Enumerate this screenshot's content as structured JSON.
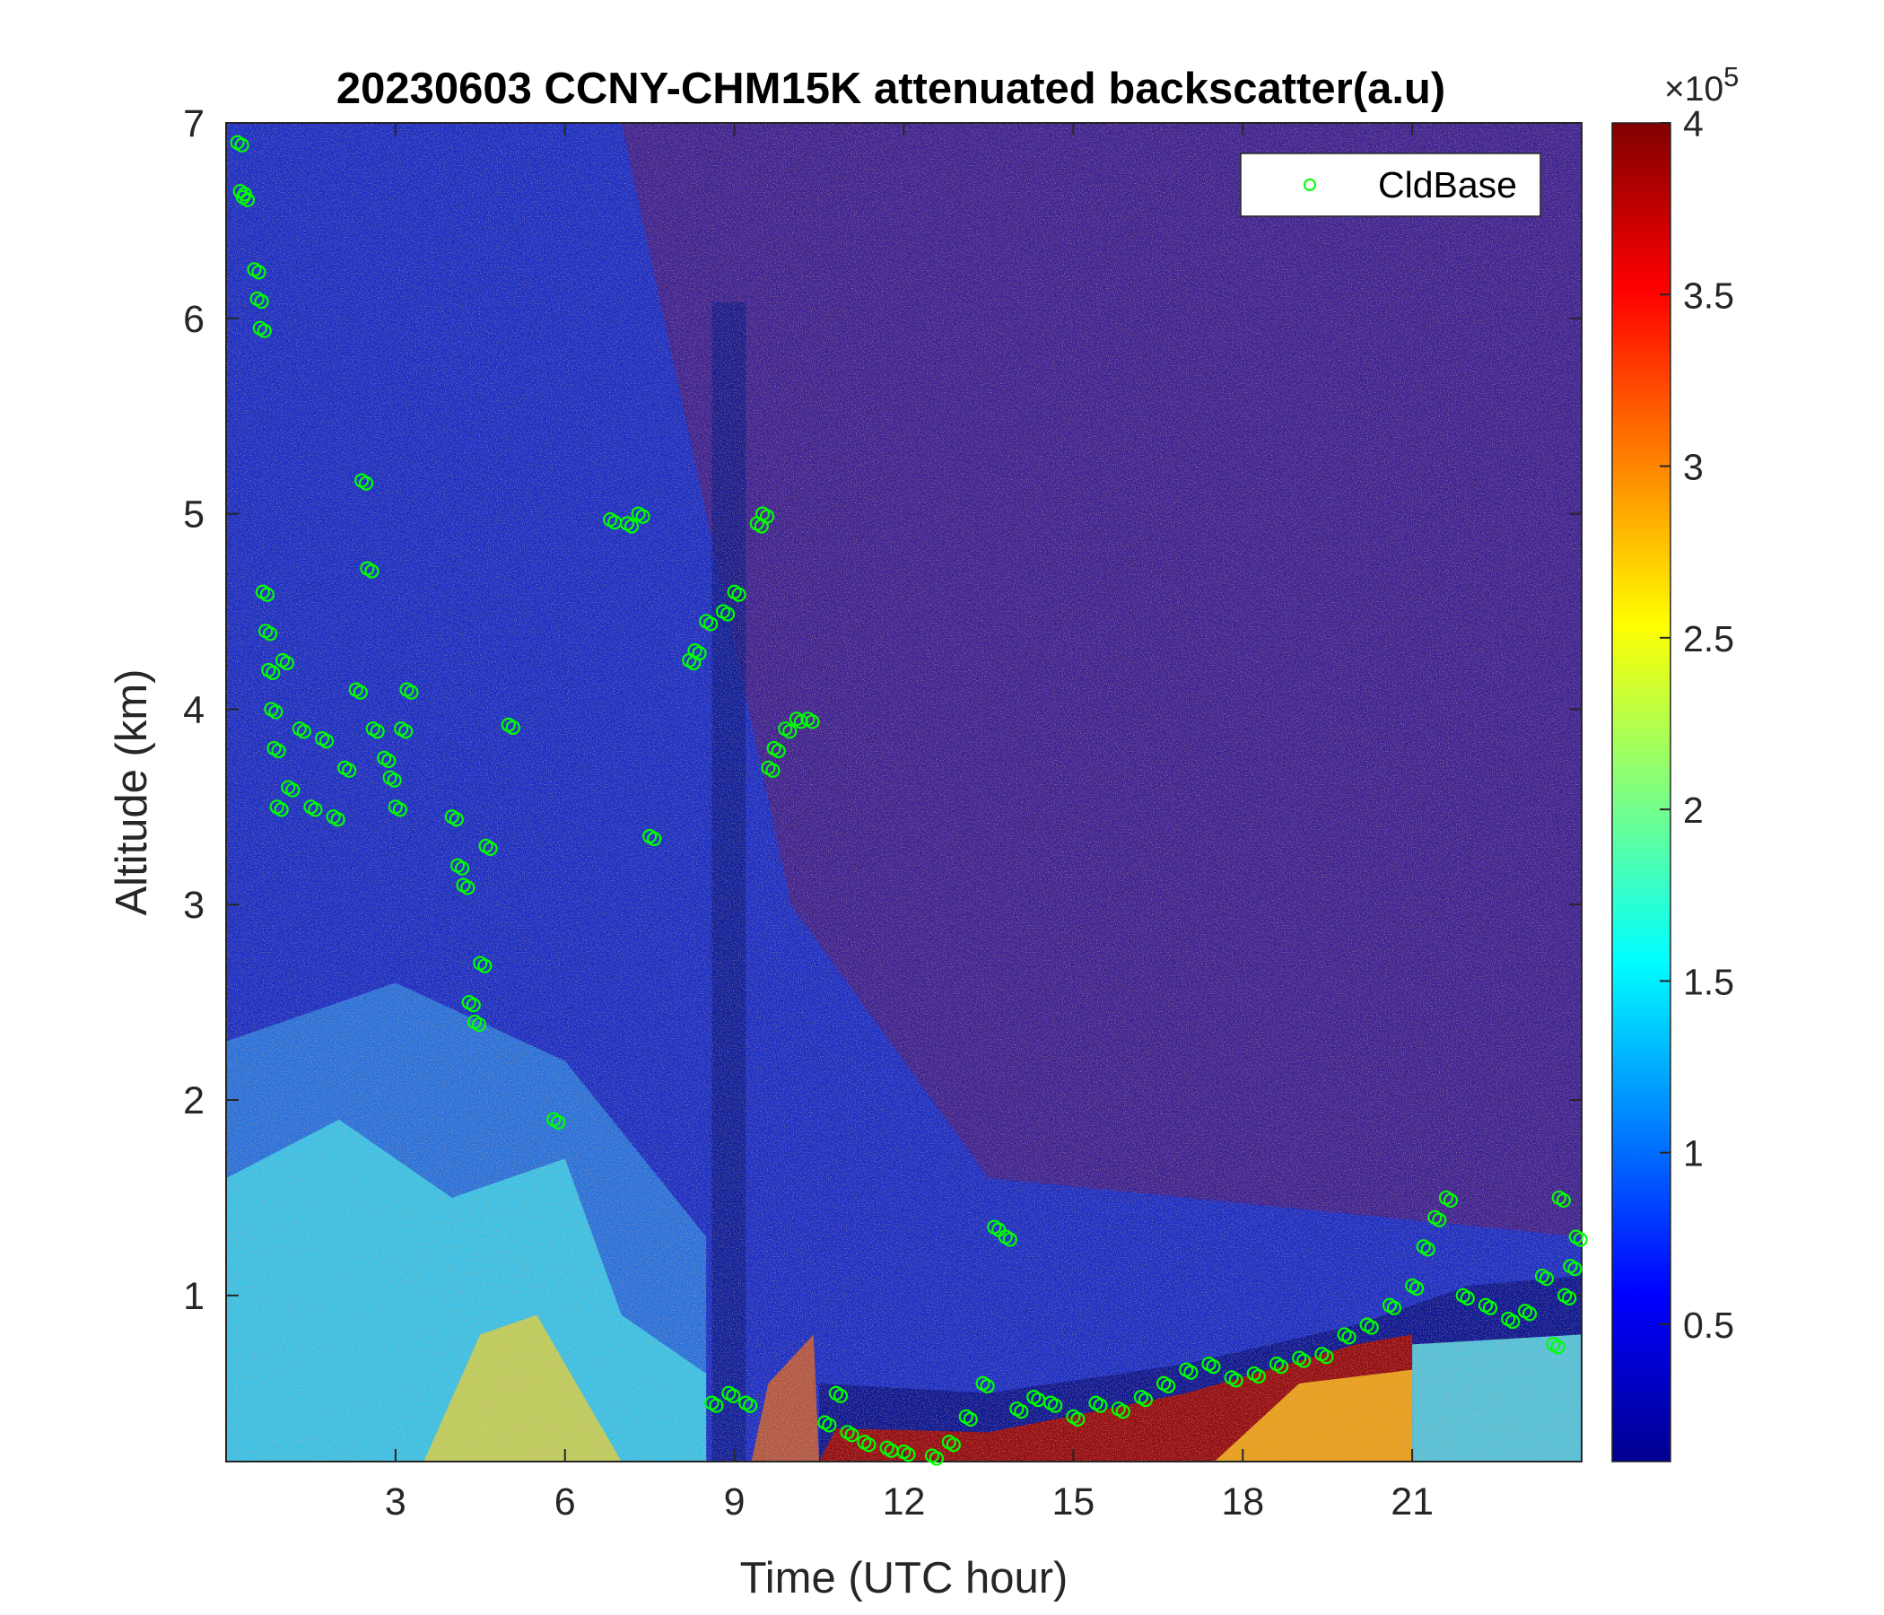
{
  "chart_data": {
    "type": "heatmap",
    "title": "20230603 CCNY-CHM15K attenuated backscatter(a.u)",
    "xlabel": "Time (UTC hour)",
    "ylabel": "Altitude (km)",
    "xlim": [
      0,
      24
    ],
    "ylim": [
      0.15,
      7
    ],
    "xticks": [
      3,
      6,
      9,
      12,
      15,
      18,
      21
    ],
    "xtick_labels": [
      "3",
      "6",
      "9",
      "12",
      "15",
      "18",
      "21"
    ],
    "yticks": [
      1,
      2,
      3,
      4,
      5,
      6,
      7
    ],
    "ytick_labels": [
      "1",
      "2",
      "3",
      "4",
      "5",
      "6",
      "7"
    ],
    "colorbar": {
      "colormap": "jet",
      "range": [
        0.1,
        4
      ],
      "ticks": [
        0.5,
        1,
        1.5,
        2,
        2.5,
        3,
        3.5,
        4
      ],
      "tick_labels": [
        "0.5",
        "1",
        "1.5",
        "2",
        "2.5",
        "3",
        "3.5",
        "4"
      ],
      "exponent_label": "×10",
      "exponent_power": "5"
    },
    "legend": {
      "position": "top-right",
      "entries": [
        "CldBase"
      ],
      "marker_color": "#00ff00"
    },
    "series": [
      {
        "name": "CldBase",
        "marker": "circle",
        "color": "#00ff00",
        "x": [
          0.2,
          0.25,
          0.3,
          0.5,
          0.55,
          0.6,
          0.65,
          0.7,
          0.75,
          0.8,
          0.85,
          0.9,
          1.0,
          1.1,
          1.3,
          1.5,
          1.7,
          1.9,
          2.1,
          2.3,
          2.4,
          2.5,
          2.6,
          2.8,
          2.9,
          3.0,
          3.1,
          3.2,
          4.0,
          4.1,
          4.2,
          4.3,
          4.4,
          4.5,
          4.6,
          5.0,
          5.8,
          6.8,
          7.1,
          7.3,
          7.5,
          8.2,
          8.3,
          8.5,
          8.6,
          8.8,
          8.9,
          9.0,
          9.2,
          9.4,
          9.5,
          9.6,
          9.7,
          9.9,
          10.1,
          10.3,
          10.6,
          10.8,
          11.0,
          11.3,
          11.7,
          12.0,
          12.5,
          12.8,
          13.1,
          13.4,
          13.6,
          13.8,
          14.0,
          14.3,
          14.6,
          15.0,
          15.4,
          15.8,
          16.2,
          16.6,
          17.0,
          17.4,
          17.8,
          18.2,
          18.6,
          19.0,
          19.4,
          19.8,
          20.2,
          20.6,
          21.0,
          21.2,
          21.4,
          21.6,
          21.9,
          22.3,
          22.7,
          23.0,
          23.3,
          23.5,
          23.6,
          23.7,
          23.8,
          23.9
        ],
        "y": [
          6.9,
          6.65,
          6.62,
          6.25,
          6.1,
          5.95,
          4.6,
          4.4,
          4.2,
          4.0,
          3.8,
          3.5,
          4.25,
          3.6,
          3.9,
          3.5,
          3.85,
          3.45,
          3.7,
          4.1,
          5.17,
          4.72,
          3.9,
          3.75,
          3.65,
          3.5,
          3.9,
          4.1,
          3.45,
          3.2,
          3.1,
          2.5,
          2.4,
          2.7,
          3.3,
          3.92,
          1.9,
          4.97,
          4.95,
          5.0,
          3.35,
          4.25,
          4.3,
          4.45,
          0.45,
          4.5,
          0.5,
          4.6,
          0.45,
          4.95,
          5.0,
          3.7,
          3.8,
          3.9,
          3.95,
          3.95,
          0.35,
          0.5,
          0.3,
          0.25,
          0.22,
          0.2,
          0.18,
          0.25,
          0.38,
          0.55,
          1.35,
          1.3,
          0.42,
          0.48,
          0.45,
          0.38,
          0.45,
          0.42,
          0.48,
          0.55,
          0.62,
          0.65,
          0.58,
          0.6,
          0.65,
          0.68,
          0.7,
          0.8,
          0.85,
          0.95,
          1.05,
          1.25,
          1.4,
          1.5,
          1.0,
          0.95,
          0.88,
          0.92,
          1.1,
          0.75,
          1.5,
          1.0,
          1.15,
          1.3
        ]
      }
    ]
  }
}
